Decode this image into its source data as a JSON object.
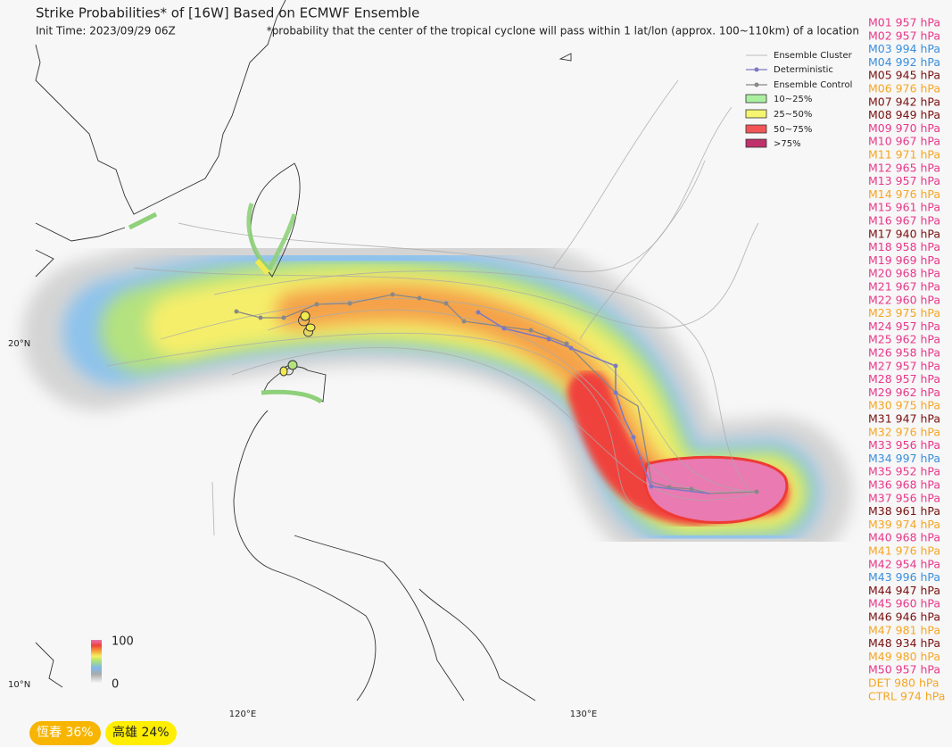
{
  "title": "Strike Probabilities* of [16W] Based on ECMWF Ensemble",
  "init_time": "Init Time: 2023/09/29 06Z",
  "note": "*probability that the center of the tropical cyclone will pass within 1 lat/lon (approx. 100~110km) of a location",
  "legend": [
    "Ensemble Cluster",
    "Deterministic",
    "Ensemble Control",
    "10~25%",
    "25~50%",
    "50~75%",
    ">75%"
  ],
  "axes": {
    "lat": [
      "20°N",
      "10°N"
    ],
    "lon": [
      "120°E",
      "130°E"
    ]
  },
  "colorbar": {
    "max": 100,
    "min": 0
  },
  "badges": [
    "恆春  36%",
    "高雄  24%"
  ],
  "members": [
    {
      "label": "M01 957 hPa",
      "color": "#e8388a"
    },
    {
      "label": "M02 957 hPa",
      "color": "#e8388a"
    },
    {
      "label": "M03 994 hPa",
      "color": "#3a8fdc"
    },
    {
      "label": "M04 992 hPa",
      "color": "#3a8fdc"
    },
    {
      "label": "M05 945 hPa",
      "color": "#7a1010"
    },
    {
      "label": "M06 976 hPa",
      "color": "#f5a623"
    },
    {
      "label": "M07 942 hPa",
      "color": "#7a1010"
    },
    {
      "label": "M08 949 hPa",
      "color": "#7a1010"
    },
    {
      "label": "M09 970 hPa",
      "color": "#e8388a"
    },
    {
      "label": "M10 967 hPa",
      "color": "#e8388a"
    },
    {
      "label": "M11 971 hPa",
      "color": "#f5a623"
    },
    {
      "label": "M12 965 hPa",
      "color": "#e8388a"
    },
    {
      "label": "M13 957 hPa",
      "color": "#e8388a"
    },
    {
      "label": "M14 976 hPa",
      "color": "#f5a623"
    },
    {
      "label": "M15 961 hPa",
      "color": "#e8388a"
    },
    {
      "label": "M16 967 hPa",
      "color": "#e8388a"
    },
    {
      "label": "M17 940 hPa",
      "color": "#7a1010"
    },
    {
      "label": "M18 958 hPa",
      "color": "#e8388a"
    },
    {
      "label": "M19 969 hPa",
      "color": "#e8388a"
    },
    {
      "label": "M20 968 hPa",
      "color": "#e8388a"
    },
    {
      "label": "M21 967 hPa",
      "color": "#e8388a"
    },
    {
      "label": "M22 960 hPa",
      "color": "#e8388a"
    },
    {
      "label": "M23 975 hPa",
      "color": "#f5a623"
    },
    {
      "label": "M24 957 hPa",
      "color": "#e8388a"
    },
    {
      "label": "M25 962 hPa",
      "color": "#e8388a"
    },
    {
      "label": "M26 958 hPa",
      "color": "#e8388a"
    },
    {
      "label": "M27 957 hPa",
      "color": "#e8388a"
    },
    {
      "label": "M28 957 hPa",
      "color": "#e8388a"
    },
    {
      "label": "M29 962 hPa",
      "color": "#e8388a"
    },
    {
      "label": "M30 975 hPa",
      "color": "#f5a623"
    },
    {
      "label": "M31 947 hPa",
      "color": "#7a1010"
    },
    {
      "label": "M32 976 hPa",
      "color": "#f5a623"
    },
    {
      "label": "M33 956 hPa",
      "color": "#e8388a"
    },
    {
      "label": "M34 997 hPa",
      "color": "#3a8fdc"
    },
    {
      "label": "M35 952 hPa",
      "color": "#e8388a"
    },
    {
      "label": "M36 968 hPa",
      "color": "#e8388a"
    },
    {
      "label": "M37 956 hPa",
      "color": "#e8388a"
    },
    {
      "label": "M38 961 hPa",
      "color": "#7a1010"
    },
    {
      "label": "M39 974 hPa",
      "color": "#f5a623"
    },
    {
      "label": "M40 968 hPa",
      "color": "#e8388a"
    },
    {
      "label": "M41 976 hPa",
      "color": "#f5a623"
    },
    {
      "label": "M42 954 hPa",
      "color": "#e8388a"
    },
    {
      "label": "M43 996 hPa",
      "color": "#3a8fdc"
    },
    {
      "label": "M44 947 hPa",
      "color": "#7a1010"
    },
    {
      "label": "M45 960 hPa",
      "color": "#e8388a"
    },
    {
      "label": "M46 946 hPa",
      "color": "#7a1010"
    },
    {
      "label": "M47 981 hPa",
      "color": "#f5a623"
    },
    {
      "label": "M48 934 hPa",
      "color": "#7a1010"
    },
    {
      "label": "M49 980 hPa",
      "color": "#f5a623"
    },
    {
      "label": "M50 957 hPa",
      "color": "#e8388a"
    },
    {
      "label": "DET 980 hPa",
      "color": "#f5a623"
    },
    {
      "label": "CTRL 974 hPa",
      "color": "#f5a623"
    }
  ]
}
